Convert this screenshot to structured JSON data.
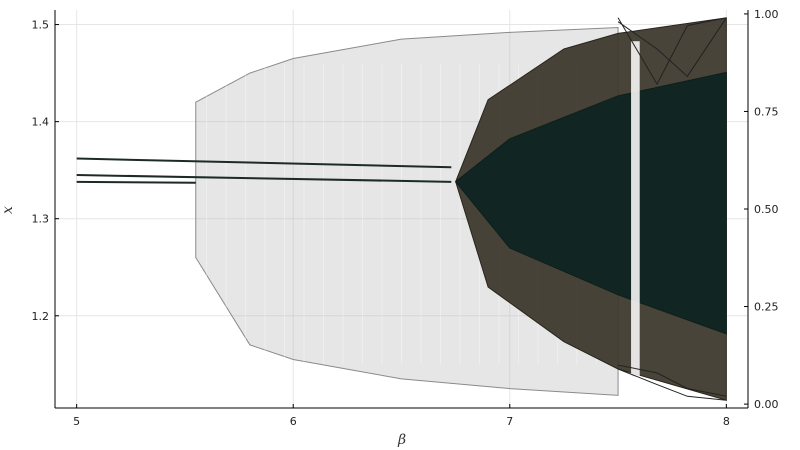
{
  "chart_data": {
    "type": "scatter",
    "title": "",
    "xlabel": "β",
    "ylabel": "x",
    "xlim": [
      4.9,
      8.1
    ],
    "ylim_left": [
      1.105,
      1.515
    ],
    "ylim_right": [
      -0.01,
      1.01
    ],
    "grid": true,
    "xticks": [
      5,
      6,
      7,
      8
    ],
    "yticks_left": [
      1.2,
      1.3,
      1.4,
      1.5
    ],
    "yticks_right": [
      0.0,
      0.25,
      0.5,
      0.75,
      1.0
    ],
    "xtick_labels": [
      "5",
      "6",
      "7",
      "8"
    ],
    "ytick_labels_left": [
      "1.2",
      "1.3",
      "1.4",
      "1.5"
    ],
    "ytick_labels_right": [
      "0.00",
      "0.25",
      "0.50",
      "0.75",
      "1.00"
    ],
    "series": [
      {
        "axis": "left",
        "color": "#b0b0b0",
        "points": [
          [
            5.55,
            1.26
          ],
          [
            5.55,
            1.42
          ],
          [
            5.8,
            1.17
          ],
          [
            5.8,
            1.45
          ],
          [
            6.0,
            1.155
          ],
          [
            6.0,
            1.465
          ],
          [
            6.5,
            1.135
          ],
          [
            6.5,
            1.485
          ],
          [
            7.0,
            1.125
          ],
          [
            7.0,
            1.492
          ],
          [
            7.5,
            1.118
          ],
          [
            7.5,
            1.497
          ]
        ],
        "lines": [
          [
            [
              5.0,
              1.362
            ],
            [
              6.73,
              1.353
            ]
          ],
          [
            [
              5.0,
              1.345
            ],
            [
              6.73,
              1.338
            ]
          ],
          [
            [
              5.0,
              1.338
            ],
            [
              5.55,
              1.337
            ]
          ]
        ]
      },
      {
        "axis": "right",
        "color": "#3a3428",
        "points": [
          [
            6.75,
            0.57
          ],
          [
            6.9,
            0.3
          ],
          [
            6.9,
            0.78
          ],
          [
            7.25,
            0.16
          ],
          [
            7.25,
            0.91
          ],
          [
            7.5,
            0.09
          ],
          [
            7.5,
            0.95
          ],
          [
            8.0,
            0.01
          ],
          [
            8.0,
            0.99
          ]
        ]
      },
      {
        "axis": "right",
        "color": "#112622",
        "points": [
          [
            6.75,
            0.57
          ],
          [
            7.0,
            0.4
          ],
          [
            7.0,
            0.68
          ],
          [
            7.5,
            0.28
          ],
          [
            7.5,
            0.79
          ],
          [
            8.0,
            0.18
          ],
          [
            8.0,
            0.85
          ]
        ]
      }
    ]
  }
}
